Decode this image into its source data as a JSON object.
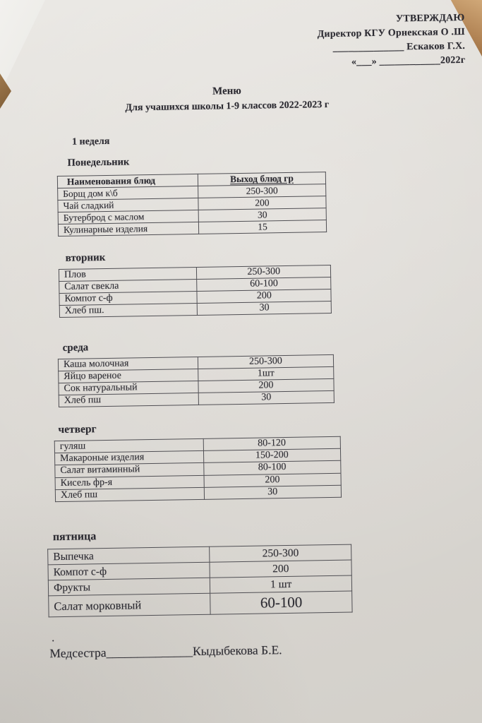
{
  "approval": {
    "line1": "УТВЕРЖДАЮ",
    "line2": "Директор  КГУ  Орнекская О .Ш",
    "line3": "______________ Ескаков Г.Х.",
    "line4": "«___» ____________2022г"
  },
  "title": "Меню",
  "subtitle": "Для учашихся  школы 1-9 классов 2022-2023 г",
  "week_label": "1 неделя",
  "days": [
    {
      "name": "Понедельник",
      "columns": [
        "Наименования  блюд",
        "Выход блюд гр"
      ],
      "rows": [
        [
          "Борщ  дом  к\\б",
          "250-300"
        ],
        [
          "Чай сладкий",
          "200"
        ],
        [
          "Бутерброд с маслом",
          "30"
        ],
        [
          "Кулинарные изделия",
          "15"
        ]
      ]
    },
    {
      "name": "вторник",
      "rows": [
        [
          "Плов",
          "250-300"
        ],
        [
          "Салат свекла",
          "60-100"
        ],
        [
          "Компот с-ф",
          "200"
        ],
        [
          "Хлеб пш.",
          "30"
        ]
      ]
    },
    {
      "name": "среда",
      "rows": [
        [
          "Каша молочная",
          "250-300"
        ],
        [
          "Яйцо вареное",
          "1шт"
        ],
        [
          "Сок натуральный",
          "200"
        ],
        [
          "Хлеб пш",
          "30"
        ]
      ]
    },
    {
      "name": "четверг",
      "rows": [
        [
          "гуляш",
          "80-120"
        ],
        [
          "Макароные изделия",
          "150-200"
        ],
        [
          "Салат витаминный",
          "80-100"
        ],
        [
          "Кисель фр-я",
          "200"
        ],
        [
          "Хлеб пш",
          "30"
        ]
      ]
    },
    {
      "name": "пятница",
      "rows": [
        [
          "Выпечка",
          "250-300"
        ],
        [
          "Компот с-ф",
          "200"
        ],
        [
          "Фрукты",
          "1 шт"
        ],
        [
          "Салат морковный",
          "60-100"
        ]
      ]
    }
  ],
  "footer": {
    "dot": ".",
    "signature": "Медсестра______________Кыдыбекова Б.Е."
  },
  "colors": {
    "paper": "#dcd9d4",
    "ink": "#2b2a31",
    "table_surface": "#a87f52"
  }
}
